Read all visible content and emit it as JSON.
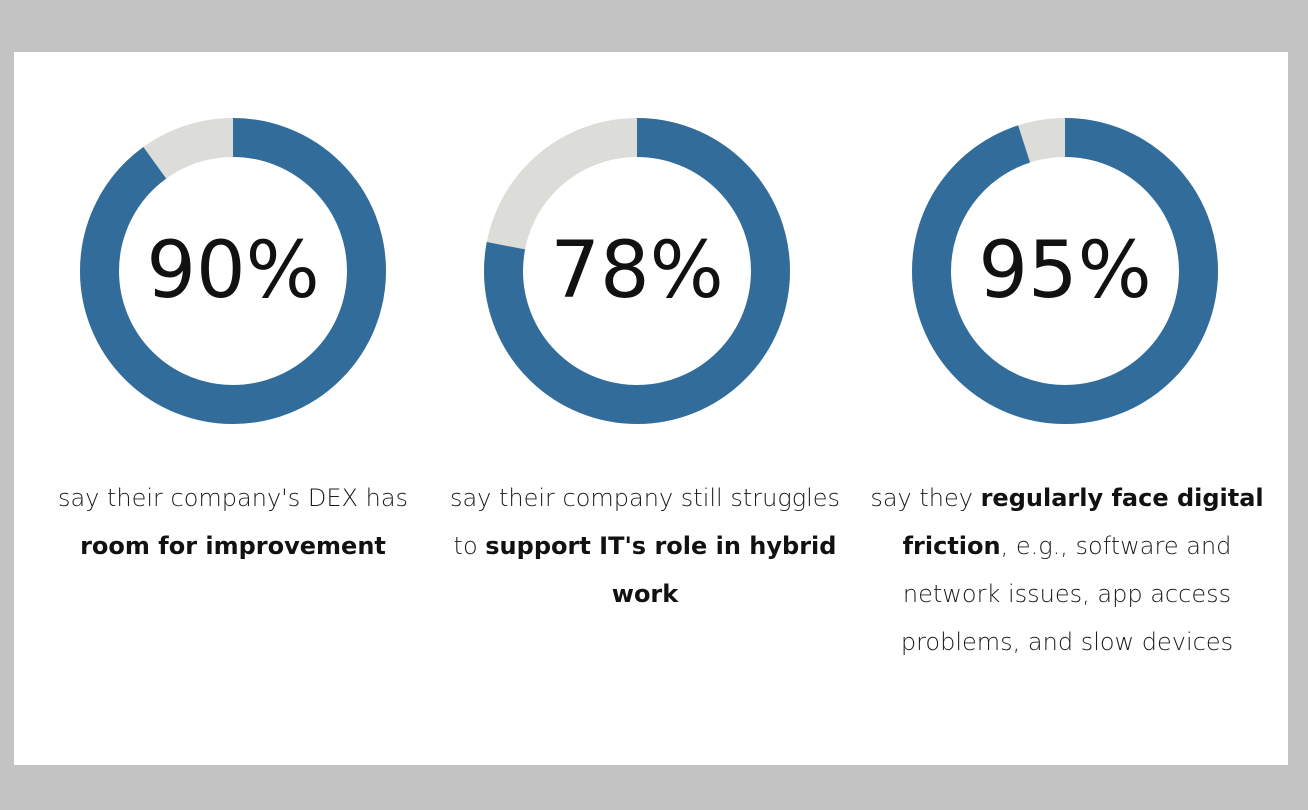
{
  "colors": {
    "page_background": "#c3c3c3",
    "card_background": "#ffffff",
    "filled": "#316c9a",
    "remainder": "#dcdcd8",
    "text": "#111111"
  },
  "chart_data": [
    {
      "type": "pie",
      "variant": "donut",
      "value": 90,
      "max": 100,
      "label": "90%",
      "caption": [
        {
          "text": "say their company's DEX has ",
          "bold": false
        },
        {
          "text": "room for improvement",
          "bold": true
        }
      ]
    },
    {
      "type": "pie",
      "variant": "donut",
      "value": 78,
      "max": 100,
      "label": "78%",
      "caption": [
        {
          "text": "say their company still struggles to ",
          "bold": false
        },
        {
          "text": "support IT's role in hybrid work",
          "bold": true
        }
      ]
    },
    {
      "type": "pie",
      "variant": "donut",
      "value": 95,
      "max": 100,
      "label": "95%",
      "caption": [
        {
          "text": "say they ",
          "bold": false
        },
        {
          "text": "regularly face digital friction",
          "bold": true
        },
        {
          "text": ", e.g., software and network issues, app access problems, and slow devices",
          "bold": false
        }
      ]
    }
  ]
}
